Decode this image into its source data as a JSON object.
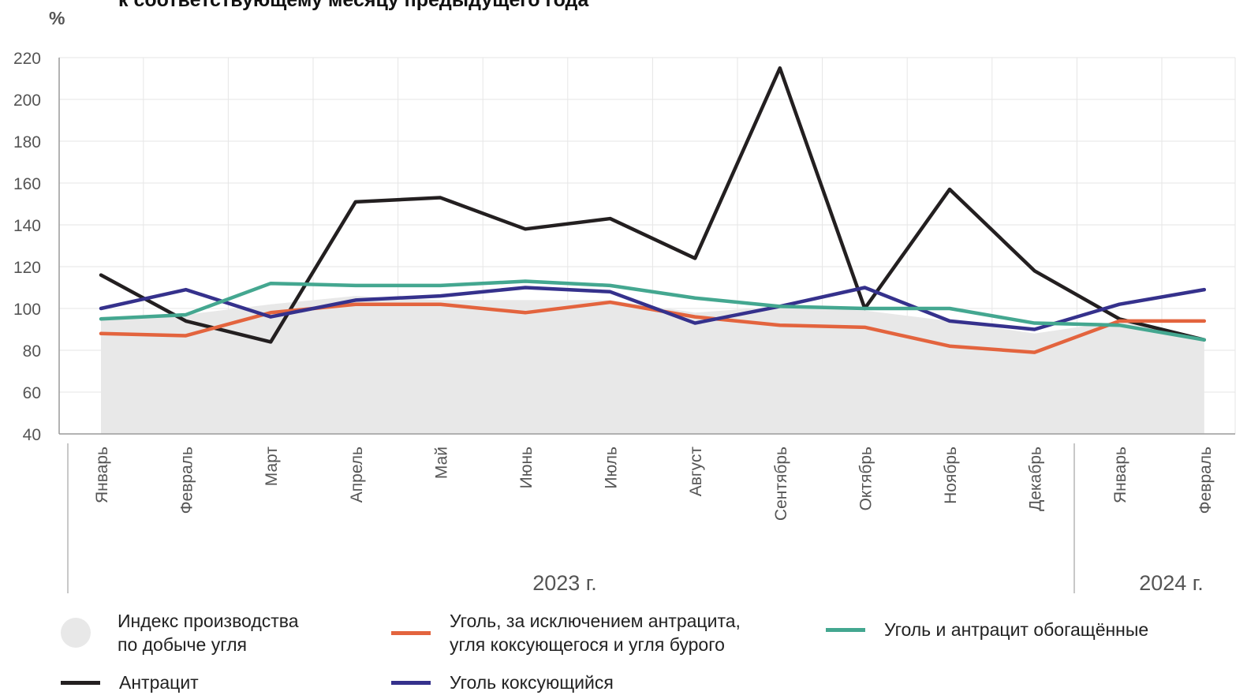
{
  "chart_data": {
    "type": "line",
    "title": "к соответствующему месяцу предыдущего года",
    "ylabel": "%",
    "ylim": [
      40,
      220
    ],
    "yticks": [
      40,
      60,
      80,
      100,
      120,
      140,
      160,
      180,
      200,
      220
    ],
    "grid": true,
    "categories": [
      "Январь",
      "Февраль",
      "Март",
      "Апрель",
      "Май",
      "Июнь",
      "Июль",
      "Август",
      "Сентябрь",
      "Октябрь",
      "Ноябрь",
      "Декабрь",
      "Январь",
      "Февраль"
    ],
    "year_groups": [
      {
        "label": "2023 г.",
        "count": 12
      },
      {
        "label": "2024 г.",
        "count": 2
      }
    ],
    "series": [
      {
        "name": "Индекс производства\nпо добыче угля",
        "kind": "area",
        "color": "#e8e8e8",
        "values": [
          96,
          97,
          102,
          106,
          104,
          104,
          104,
          98,
          101,
          99,
          94,
          88,
          94,
          85
        ]
      },
      {
        "name": "Антрацит",
        "kind": "line",
        "color": "#231f20",
        "values": [
          116,
          94,
          84,
          151,
          153,
          138,
          143,
          124,
          215,
          100,
          157,
          118,
          95,
          85
        ]
      },
      {
        "name": "Уголь, за исключением антрацита,\nугля коксующегося и угля бурого",
        "kind": "line",
        "color": "#e3643e",
        "values": [
          88,
          87,
          98,
          102,
          102,
          98,
          103,
          96,
          92,
          91,
          82,
          79,
          94,
          94
        ]
      },
      {
        "name": "Уголь коксующийся",
        "kind": "line",
        "color": "#35318c",
        "values": [
          100,
          109,
          96,
          104,
          106,
          110,
          108,
          93,
          101,
          110,
          94,
          90,
          102,
          109
        ]
      },
      {
        "name": "Уголь и антрацит обогащённые",
        "kind": "line",
        "color": "#44a790",
        "values": [
          95,
          97,
          112,
          111,
          111,
          113,
          111,
          105,
          101,
          100,
          100,
          93,
          92,
          85
        ]
      }
    ]
  }
}
